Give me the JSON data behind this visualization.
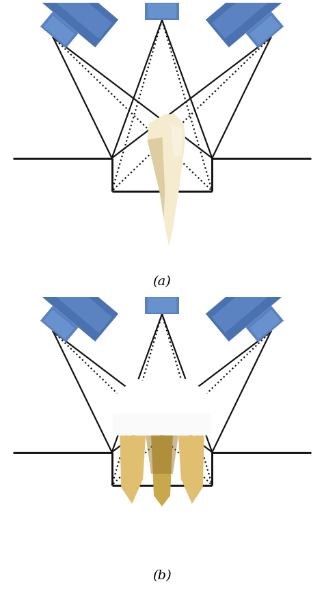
{
  "fig_width": 4.74,
  "fig_height": 8.65,
  "dpi": 100,
  "bg_color": "#ffffff",
  "scanner_body_color": "#4a72b0",
  "scanner_body_light": "#6a92d0",
  "scanner_nozzle_color": "#5a80c0",
  "scanner_nozzle_light": "#7aaae0",
  "line_color": "#111111",
  "line_width": 1.6,
  "label_a": "(a)",
  "label_b": "(b)",
  "label_fontsize": 14,
  "tooth_a_main": "#e8dab0",
  "tooth_a_light": "#f5ecd0",
  "tooth_a_shadow": "#c0a868",
  "tooth_b_crown": "#f0f0f0",
  "tooth_b_crown_light": "#ffffff",
  "tooth_b_root": "#c8a84a",
  "tooth_b_root_light": "#e0c070",
  "tooth_b_root_shadow": "#9a7830"
}
